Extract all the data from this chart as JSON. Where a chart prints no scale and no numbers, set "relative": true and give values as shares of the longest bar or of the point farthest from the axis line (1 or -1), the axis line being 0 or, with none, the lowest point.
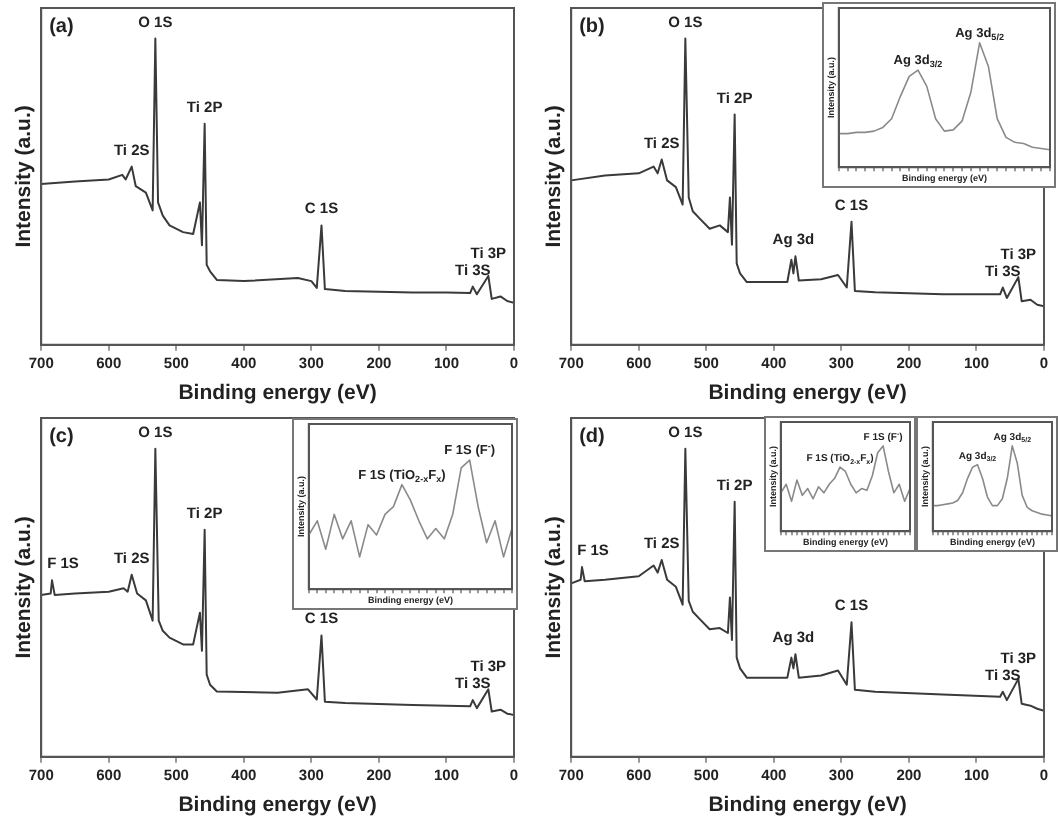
{
  "chart_data": [
    {
      "type": "line",
      "xlabel": "Binding energy (eV)",
      "ylabel": "Intensity (a.u.)",
      "relative": true,
      "marker": "none",
      "color": "#3a3a3a",
      "xlim": [
        700,
        0
      ],
      "xticks": [
        700,
        600,
        500,
        400,
        300,
        200,
        100,
        0
      ],
      "annotations": [
        "(a)",
        {
          "text": "Ti 2S",
          "x": 566,
          "y": 0.582
        },
        {
          "text": "O 1S",
          "x": 531,
          "y": 1
        },
        {
          "text": "Ti 2P",
          "x": 458,
          "y": 0.722
        },
        {
          "text": "C 1S",
          "x": 285,
          "y": 0.39
        },
        {
          "text": "Ti 3S",
          "x": 61,
          "y": 0.19
        },
        {
          "text": "Ti 3P",
          "x": 38,
          "y": 0.225
        }
      ],
      "x": [
        700,
        650,
        600,
        580,
        575,
        566,
        560,
        545,
        535,
        531,
        527,
        520,
        510,
        490,
        475,
        465,
        462,
        458,
        455,
        450,
        440,
        400,
        320,
        300,
        292,
        285,
        280,
        250,
        150,
        100,
        65,
        61,
        55,
        38,
        33,
        20,
        10,
        0
      ],
      "values": [
        0.525,
        0.533,
        0.54,
        0.555,
        0.54,
        0.582,
        0.518,
        0.497,
        0.439,
        1,
        0.465,
        0.422,
        0.39,
        0.368,
        0.362,
        0.465,
        0.325,
        0.722,
        0.261,
        0.24,
        0.212,
        0.208,
        0.218,
        0.208,
        0.186,
        0.39,
        0.182,
        0.176,
        0.171,
        0.171,
        0.169,
        0.19,
        0.165,
        0.225,
        0.15,
        0.158,
        0.143,
        0.137
      ]
    },
    {
      "type": "line",
      "xlabel": "Binding energy (eV)",
      "ylabel": "Intensity (a.u.)",
      "relative": true,
      "marker": "none",
      "color": "#3a3a3a",
      "xlim": [
        700,
        0
      ],
      "xticks": [
        700,
        600,
        500,
        400,
        300,
        200,
        100,
        0
      ],
      "annotations": [
        "(b)",
        {
          "text": "Ti 2S",
          "x": 566,
          "y": 0.605
        },
        {
          "text": "O 1S",
          "x": 531,
          "y": 1
        },
        {
          "text": "Ti 2P",
          "x": 458,
          "y": 0.752
        },
        {
          "text": "Ag 3d",
          "x": 371,
          "y": 0.289
        },
        {
          "text": "C 1S",
          "x": 285,
          "y": 0.402
        },
        {
          "text": "Ti 3S",
          "x": 61,
          "y": 0.187
        },
        {
          "text": "Ti 3P",
          "x": 38,
          "y": 0.221
        }
      ],
      "x": [
        700,
        650,
        600,
        578,
        572,
        566,
        558,
        545,
        535,
        531,
        526,
        520,
        510,
        495,
        480,
        468,
        465,
        462,
        458,
        455,
        450,
        440,
        380,
        374,
        371,
        368,
        363,
        330,
        305,
        292,
        285,
        280,
        250,
        150,
        65,
        61,
        55,
        38,
        33,
        20,
        10,
        0
      ],
      "values": [
        0.537,
        0.553,
        0.56,
        0.582,
        0.56,
        0.605,
        0.537,
        0.515,
        0.458,
        1,
        0.481,
        0.436,
        0.413,
        0.379,
        0.39,
        0.368,
        0.481,
        0.327,
        0.752,
        0.266,
        0.233,
        0.205,
        0.205,
        0.278,
        0.233,
        0.289,
        0.21,
        0.214,
        0.228,
        0.187,
        0.402,
        0.176,
        0.172,
        0.165,
        0.165,
        0.187,
        0.153,
        0.221,
        0.142,
        0.147,
        0.131,
        0.126
      ]
    },
    {
      "type": "line",
      "xlabel": "Binding energy (eV)",
      "ylabel": "Intensity (a.u.)",
      "relative": true,
      "marker": "none",
      "color": "#8a8a8a",
      "tick_labels": false,
      "annotations": [
        "Ag 3d$_{3/2}$",
        "Ag 3d$_{5/2}$"
      ],
      "categories": [
        null,
        null,
        null,
        null,
        null,
        null,
        null,
        null,
        null,
        null,
        null,
        null,
        null,
        null,
        null,
        null,
        null,
        null,
        null,
        null,
        null,
        null,
        null,
        null,
        null
      ],
      "values": [
        0.27,
        0.27,
        0.28,
        0.28,
        0.29,
        0.32,
        0.39,
        0.57,
        0.73,
        0.78,
        0.65,
        0.39,
        0.29,
        0.3,
        0.37,
        0.6,
        1,
        0.81,
        0.39,
        0.24,
        0.2,
        0.19,
        0.16,
        0.15,
        0.14
      ]
    },
    {
      "type": "line",
      "xlabel": "Binding energy (eV)",
      "ylabel": "Intensity (a.u.)",
      "relative": true,
      "marker": "none",
      "color": "#3a3a3a",
      "xlim": [
        700,
        0
      ],
      "xticks": [
        700,
        600,
        500,
        400,
        300,
        200,
        100,
        0
      ],
      "annotations": [
        "(c)",
        {
          "text": "F 1S",
          "x": 684,
          "y": 0.573
        },
        {
          "text": "Ti 2S",
          "x": 566,
          "y": 0.591
        },
        {
          "text": "O 1S",
          "x": 531,
          "y": 1
        },
        {
          "text": "Ti 2P",
          "x": 458,
          "y": 0.737
        },
        {
          "text": "C 1S",
          "x": 285,
          "y": 0.394
        },
        {
          "text": "Ti 3S",
          "x": 61,
          "y": 0.184
        },
        {
          "text": "Ti 3P",
          "x": 38,
          "y": 0.219
        }
      ],
      "x": [
        700,
        686,
        684,
        680,
        650,
        600,
        578,
        572,
        566,
        558,
        545,
        535,
        531,
        526,
        520,
        510,
        490,
        475,
        465,
        462,
        458,
        455,
        450,
        440,
        350,
        305,
        292,
        285,
        280,
        250,
        150,
        65,
        61,
        55,
        38,
        33,
        20,
        10,
        0
      ],
      "values": [
        0.525,
        0.53,
        0.573,
        0.525,
        0.53,
        0.536,
        0.547,
        0.536,
        0.591,
        0.53,
        0.508,
        0.442,
        1,
        0.442,
        0.409,
        0.387,
        0.365,
        0.365,
        0.468,
        0.344,
        0.737,
        0.267,
        0.234,
        0.212,
        0.208,
        0.219,
        0.186,
        0.394,
        0.179,
        0.175,
        0.168,
        0.164,
        0.184,
        0.158,
        0.219,
        0.147,
        0.153,
        0.14,
        0.136
      ]
    },
    {
      "type": "line",
      "xlabel": "Binding energy (eV)",
      "ylabel": "Intensity (a.u.)",
      "relative": true,
      "marker": "none",
      "color": "#8a8a8a",
      "tick_labels": false,
      "annotations": [
        "F 1S (TiO$_{2-x}$F$_{x}$)",
        "F 1S (F$^{-}$)"
      ],
      "categories": [
        null,
        null,
        null,
        null,
        null,
        null,
        null,
        null,
        null,
        null,
        null,
        null,
        null,
        null,
        null,
        null,
        null,
        null,
        null,
        null,
        null,
        null,
        null,
        null,
        null
      ],
      "values": [
        0.42,
        0.53,
        0.31,
        0.58,
        0.39,
        0.53,
        0.25,
        0.5,
        0.42,
        0.58,
        0.64,
        0.81,
        0.69,
        0.53,
        0.39,
        0.47,
        0.39,
        0.58,
        0.94,
        1,
        0.64,
        0.36,
        0.53,
        0.25,
        0.47
      ]
    },
    {
      "type": "line",
      "xlabel": "Binding energy (eV)",
      "ylabel": "Intensity (a.u.)",
      "relative": true,
      "marker": "none",
      "color": "#3a3a3a",
      "xlim": [
        700,
        0
      ],
      "xticks": [
        700,
        600,
        500,
        400,
        300,
        200,
        100,
        0
      ],
      "annotations": [
        "(d)",
        {
          "text": "F 1S",
          "x": 684,
          "y": 0.616
        },
        {
          "text": "Ti 2S",
          "x": 566,
          "y": 0.639
        },
        {
          "text": "O 1S",
          "x": 531,
          "y": 1
        },
        {
          "text": "Ti 2P",
          "x": 458,
          "y": 0.828
        },
        {
          "text": "Ag 3d",
          "x": 371,
          "y": 0.333
        },
        {
          "text": "C 1S",
          "x": 285,
          "y": 0.437
        },
        {
          "text": "Ti 3S",
          "x": 61,
          "y": 0.211
        },
        {
          "text": "Ti 3P",
          "x": 38,
          "y": 0.253
        }
      ],
      "x": [
        700,
        686,
        684,
        680,
        650,
        600,
        578,
        572,
        566,
        558,
        545,
        535,
        531,
        526,
        520,
        510,
        495,
        480,
        468,
        465,
        462,
        458,
        455,
        450,
        440,
        380,
        374,
        371,
        368,
        363,
        330,
        305,
        292,
        285,
        280,
        250,
        150,
        65,
        61,
        55,
        38,
        33,
        20,
        10,
        0
      ],
      "values": [
        0.563,
        0.575,
        0.616,
        0.57,
        0.575,
        0.586,
        0.621,
        0.598,
        0.639,
        0.575,
        0.552,
        0.494,
        1,
        0.506,
        0.471,
        0.448,
        0.414,
        0.418,
        0.402,
        0.517,
        0.379,
        0.828,
        0.322,
        0.287,
        0.257,
        0.257,
        0.322,
        0.287,
        0.333,
        0.257,
        0.264,
        0.28,
        0.234,
        0.437,
        0.218,
        0.211,
        0.202,
        0.195,
        0.211,
        0.184,
        0.253,
        0.172,
        0.166,
        0.156,
        0.149
      ]
    },
    {
      "type": "line",
      "xlabel": "Binding energy (eV)",
      "ylabel": "Intensity (a.u.)",
      "relative": true,
      "marker": "none",
      "color": "#8a8a8a",
      "tick_labels": false,
      "annotations": [
        "F 1S (TiO$_{2-x}$F$_{x}$)",
        "F 1S (F$^{-}$)"
      ],
      "categories": [
        null,
        null,
        null,
        null,
        null,
        null,
        null,
        null,
        null,
        null,
        null,
        null,
        null,
        null,
        null,
        null,
        null,
        null,
        null,
        null,
        null,
        null,
        null,
        null,
        null
      ],
      "values": [
        0.45,
        0.55,
        0.35,
        0.6,
        0.42,
        0.5,
        0.38,
        0.52,
        0.45,
        0.55,
        0.62,
        0.75,
        0.7,
        0.55,
        0.45,
        0.5,
        0.48,
        0.65,
        0.92,
        1,
        0.7,
        0.45,
        0.55,
        0.35,
        0.5
      ]
    },
    {
      "type": "line",
      "xlabel": "Binding energy (eV)",
      "ylabel": "Intensity (a.u.)",
      "relative": true,
      "marker": "none",
      "color": "#8a8a8a",
      "tick_labels": false,
      "annotations": [
        "Ag 3d$_{3/2}$",
        "Ag 3d$_{5/2}$"
      ],
      "categories": [
        null,
        null,
        null,
        null,
        null,
        null,
        null,
        null,
        null,
        null,
        null,
        null,
        null,
        null,
        null,
        null,
        null,
        null,
        null,
        null,
        null,
        null,
        null,
        null,
        null
      ],
      "values": [
        0.3,
        0.3,
        0.31,
        0.32,
        0.33,
        0.36,
        0.45,
        0.62,
        0.75,
        0.78,
        0.62,
        0.4,
        0.3,
        0.3,
        0.38,
        0.62,
        1,
        0.8,
        0.42,
        0.28,
        0.24,
        0.22,
        0.2,
        0.19,
        0.18
      ]
    }
  ]
}
